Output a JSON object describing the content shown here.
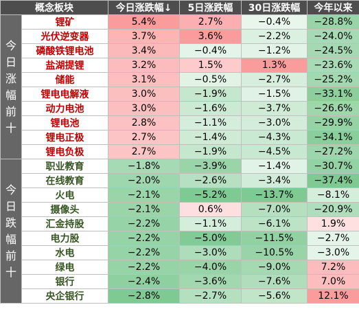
{
  "headers": [
    "概念板块",
    "今日涨跌幅↓",
    "5日涨跌幅",
    "30日涨跌幅",
    "今年以来"
  ],
  "groups": [
    {
      "label": "今日涨幅前十",
      "direction": "up",
      "rows": [
        {
          "name": "锂矿",
          "today": "5.4%",
          "d5": "2.7%",
          "d30": "−0.4%",
          "ytd": "−28.8%"
        },
        {
          "name": "光伏逆变器",
          "today": "3.7%",
          "d5": "3.6%",
          "d30": "−2.2%",
          "ytd": "−24.0%"
        },
        {
          "name": "磷酸铁锂电池",
          "today": "3.4%",
          "d5": "−0.4%",
          "d30": "−1.2%",
          "ytd": "−24.5%"
        },
        {
          "name": "盐湖提锂",
          "today": "3.2%",
          "d5": "1.5%",
          "d30": "1.3%",
          "ytd": "−23.6%"
        },
        {
          "name": "储能",
          "today": "3.1%",
          "d5": "−0.5%",
          "d30": "−2.7%",
          "ytd": "−25.2%"
        },
        {
          "name": "锂电电解液",
          "today": "3.0%",
          "d5": "−1.9%",
          "d30": "−1.5%",
          "ytd": "−33.1%"
        },
        {
          "name": "动力电池",
          "today": "3.0%",
          "d5": "−1.6%",
          "d30": "−3.7%",
          "ytd": "−26.6%"
        },
        {
          "name": "锂电池",
          "today": "2.8%",
          "d5": "−1.1%",
          "d30": "−3.0%",
          "ytd": "−29.9%"
        },
        {
          "name": "锂电正极",
          "today": "2.7%",
          "d5": "−1.4%",
          "d30": "−4.3%",
          "ytd": "−34.1%"
        },
        {
          "name": "锂电负极",
          "today": "2.7%",
          "d5": "−1.9%",
          "d30": "−4.5%",
          "ytd": "−27.2%"
        }
      ]
    },
    {
      "label": "今日跌幅前十",
      "direction": "down",
      "rows": [
        {
          "name": "职业教育",
          "today": "−1.8%",
          "d5": "−3.9%",
          "d30": "−1.4%",
          "ytd": "−30.7%"
        },
        {
          "name": "在线教育",
          "today": "−2.0%",
          "d5": "−2.6%",
          "d30": "−3.4%",
          "ytd": "−37.4%"
        },
        {
          "name": "火电",
          "today": "−2.1%",
          "d5": "−5.2%",
          "d30": "−13.7%",
          "ytd": "−8.1%"
        },
        {
          "name": "摄像头",
          "today": "−2.1%",
          "d5": "0.6%",
          "d30": "−7.0%",
          "ytd": "−20.9%"
        },
        {
          "name": "汇金持股",
          "today": "−2.2%",
          "d5": "−1.1%",
          "d30": "−6.1%",
          "ytd": "1.9%"
        },
        {
          "name": "电力股",
          "today": "−2.2%",
          "d5": "−5.0%",
          "d30": "−11.5%",
          "ytd": "−2.7%"
        },
        {
          "name": "水电",
          "today": "−2.2%",
          "d5": "−3.0%",
          "d30": "−10.5%",
          "ytd": "−3.0%"
        },
        {
          "name": "绿电",
          "today": "−2.2%",
          "d5": "−4.0%",
          "d30": "−9.0%",
          "ytd": "7.2%"
        },
        {
          "name": "银行",
          "today": "−2.4%",
          "d5": "−3.6%",
          "d30": "−7.6%",
          "ytd": "7.0%"
        },
        {
          "name": "央企银行",
          "today": "−2.8%",
          "d5": "−2.7%",
          "d30": "−5.6%",
          "ytd": "12.1%"
        }
      ]
    }
  ],
  "colors": {
    "header_bg": "#4d4d4d",
    "group_bg": "#666666",
    "up_name": "#c00000",
    "down_name": "#375623",
    "pos_heat": "#f8696b",
    "neg_heat": "#63be7b"
  }
}
